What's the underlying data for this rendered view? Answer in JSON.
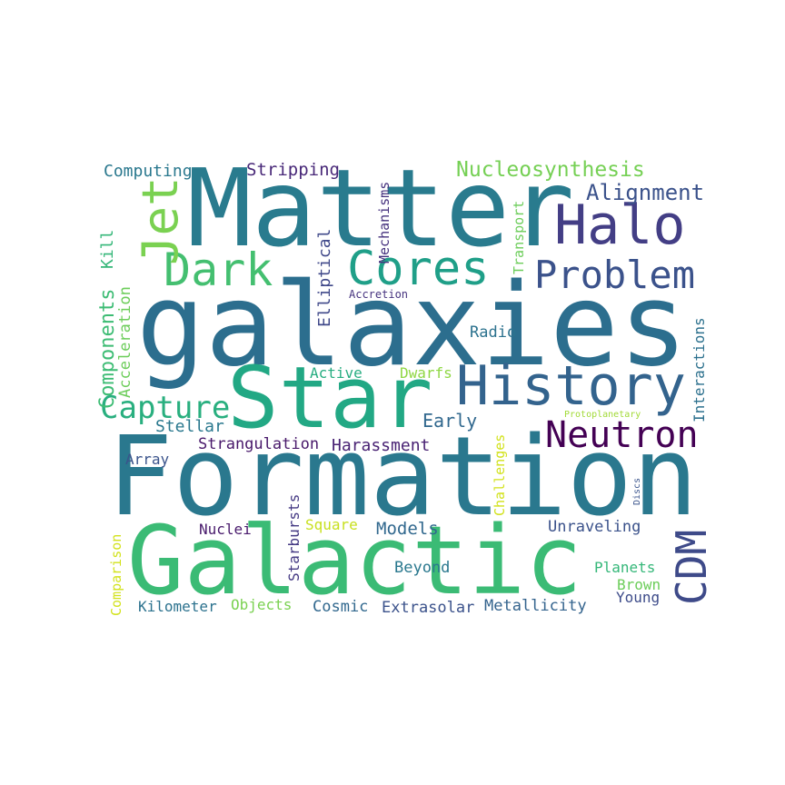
{
  "words": [
    {
      "text": "galaxies",
      "color": "#2c6e8e"
    },
    {
      "text": "Formation",
      "color": "#2a788e"
    },
    {
      "text": "Galactic",
      "color": "#3bbb75"
    },
    {
      "text": "Matter",
      "color": "#297b8e"
    },
    {
      "text": "Star",
      "color": "#22a884"
    },
    {
      "text": "History",
      "color": "#33638d"
    },
    {
      "text": "Halo",
      "color": "#433e85"
    },
    {
      "text": "Dark",
      "color": "#44bf70"
    },
    {
      "text": "Cores",
      "color": "#1f9f88"
    },
    {
      "text": "Problem",
      "color": "#3b528b"
    },
    {
      "text": "Jet",
      "color": "#7ad151"
    },
    {
      "text": "Neutron",
      "color": "#440154"
    },
    {
      "text": "CDM",
      "color": "#3e4a89"
    },
    {
      "text": "Capture",
      "color": "#29af7f"
    },
    {
      "text": "Alignment",
      "color": "#3b528b"
    },
    {
      "text": "Nucleosynthesis",
      "color": "#75d054"
    },
    {
      "text": "Components",
      "color": "#3dbc74"
    },
    {
      "text": "Computing",
      "color": "#2a788e"
    },
    {
      "text": "Stripping",
      "color": "#482878"
    },
    {
      "text": "Early",
      "color": "#31688e"
    },
    {
      "text": "Stellar",
      "color": "#2a788e"
    },
    {
      "text": "Strangulation",
      "color": "#48186a"
    },
    {
      "text": "Harassment",
      "color": "#482173"
    },
    {
      "text": "Active",
      "color": "#27ad81"
    },
    {
      "text": "Dwarfs",
      "color": "#8fd744"
    },
    {
      "text": "Radio",
      "color": "#2c728e"
    },
    {
      "text": "Accretion",
      "color": "#46337f"
    },
    {
      "text": "Elliptical",
      "color": "#3f4889"
    },
    {
      "text": "Mechanisms",
      "color": "#46327e"
    },
    {
      "text": "Transport",
      "color": "#6ccd5a"
    },
    {
      "text": "Kill",
      "color": "#35b779"
    },
    {
      "text": "Acceleration",
      "color": "#6ccd5a"
    },
    {
      "text": "Interactions",
      "color": "#2d718e"
    },
    {
      "text": "Array",
      "color": "#3a538b"
    },
    {
      "text": "Nuclei",
      "color": "#481a6c"
    },
    {
      "text": "Square",
      "color": "#c8e020"
    },
    {
      "text": "Models",
      "color": "#31688e"
    },
    {
      "text": "Starbursts",
      "color": "#443983"
    },
    {
      "text": "Challenges",
      "color": "#d2e21b"
    },
    {
      "text": "Unraveling",
      "color": "#3b528b"
    },
    {
      "text": "Protoplanetary",
      "color": "#a2da37"
    },
    {
      "text": "Discs",
      "color": "#3a548c"
    },
    {
      "text": "Comparison",
      "color": "#d2e21b"
    },
    {
      "text": "Beyond",
      "color": "#2a788e"
    },
    {
      "text": "Planets",
      "color": "#35b779"
    },
    {
      "text": "Brown",
      "color": "#6ccd5a"
    },
    {
      "text": "Young",
      "color": "#3e4c8a"
    },
    {
      "text": "Kilometer",
      "color": "#2c728e"
    },
    {
      "text": "Objects",
      "color": "#7ad151"
    },
    {
      "text": "Cosmic",
      "color": "#31688e"
    },
    {
      "text": "Extrasolar",
      "color": "#3b528b"
    },
    {
      "text": "Metallicity",
      "color": "#33638d"
    }
  ]
}
